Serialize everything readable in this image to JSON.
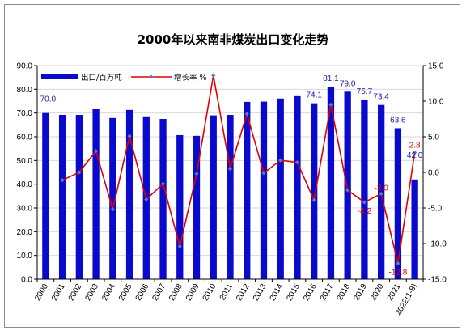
{
  "chart_data": {
    "type": "bar+line",
    "title": "2000年以来南非煤炭出口变化走势",
    "categories": [
      "2000",
      "2001",
      "2002",
      "2003",
      "2004",
      "2005",
      "2006",
      "2007",
      "2008",
      "2009",
      "2010",
      "2011",
      "2012",
      "2013",
      "2014",
      "2015",
      "2016",
      "2017",
      "2018",
      "2019",
      "2020",
      "2021",
      "2022(1-8)"
    ],
    "series": [
      {
        "name": "出口/百万吨",
        "type": "bar",
        "axis": "left",
        "color": "#0a0acc",
        "values": [
          70.0,
          69.2,
          69.2,
          71.6,
          67.9,
          71.3,
          68.6,
          67.5,
          60.7,
          60.4,
          69.0,
          69.2,
          74.7,
          74.8,
          76.1,
          77.1,
          74.1,
          81.1,
          79.0,
          75.7,
          73.4,
          63.6,
          42.0
        ]
      },
      {
        "name": "增长率 %",
        "type": "line",
        "axis": "right",
        "color": "#e00000",
        "values": [
          null,
          -1.1,
          0.0,
          3.0,
          -5.2,
          5.1,
          -3.8,
          -1.6,
          -10.4,
          -0.2,
          13.6,
          0.5,
          8.2,
          -0.1,
          1.7,
          1.4,
          -3.9,
          9.5,
          -2.5,
          -4.2,
          -3.0,
          -12.8,
          2.8
        ]
      }
    ],
    "bar_labels": [
      {
        "index": 0,
        "text": "70.0"
      },
      {
        "index": 16,
        "text": "74.1"
      },
      {
        "index": 17,
        "text": "81.1"
      },
      {
        "index": 18,
        "text": "79.0"
      },
      {
        "index": 19,
        "text": "75.7"
      },
      {
        "index": 20,
        "text": "73.4"
      },
      {
        "index": 21,
        "text": "63.6"
      },
      {
        "index": 22,
        "text": "42.0"
      }
    ],
    "rate_labels": [
      {
        "index": 19,
        "text": "-4.2"
      },
      {
        "index": 20,
        "text": "-3.0"
      },
      {
        "index": 21,
        "text": "-12.8"
      },
      {
        "index": 22,
        "text": "2.8"
      }
    ],
    "left_axis": {
      "min": 0,
      "max": 90,
      "step": 10,
      "tick_labels": [
        "0.0",
        "10.0",
        "20.0",
        "30.0",
        "40.0",
        "50.0",
        "60.0",
        "70.0",
        "80.0",
        "90.0"
      ]
    },
    "right_axis": {
      "min": -15,
      "max": 15,
      "step": 5,
      "tick_labels": [
        "-15.0",
        "-10.0",
        "-5.0",
        "0.0",
        "5.0",
        "10.0",
        "15.0"
      ]
    },
    "grid": true,
    "legend_position": "top-left"
  }
}
